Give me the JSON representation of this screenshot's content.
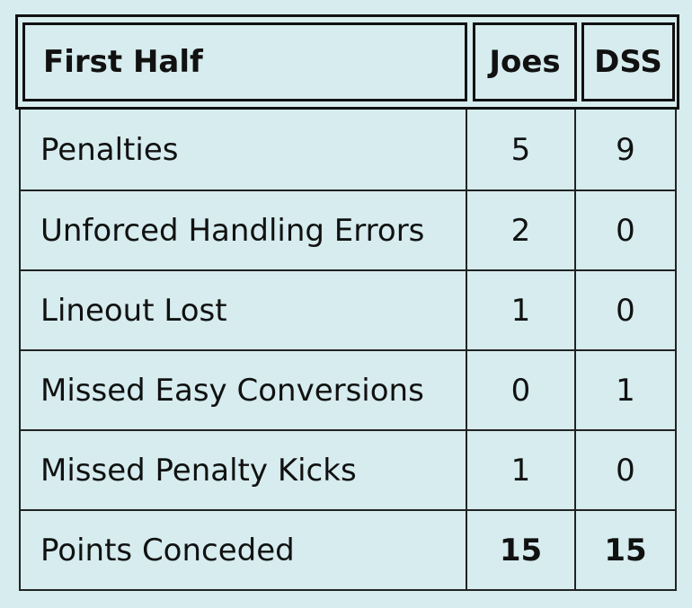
{
  "header": {
    "label": "First Half",
    "team1": "Joes",
    "team2": "DSS"
  },
  "rows": [
    {
      "label": "Penalties",
      "team1": "5",
      "team2": "9"
    },
    {
      "label": "Unforced Handling Errors",
      "team1": "2",
      "team2": "0"
    },
    {
      "label": "Lineout Lost",
      "team1": "1",
      "team2": "0"
    },
    {
      "label": "Missed Easy Conversions",
      "team1": "0",
      "team2": "1"
    },
    {
      "label": "Missed Penalty Kicks",
      "team1": "1",
      "team2": "0"
    },
    {
      "label": "Points Conceded",
      "team1": "15",
      "team2": "15"
    }
  ],
  "colors": {
    "background": "#d6ecee",
    "border": "#111111"
  }
}
